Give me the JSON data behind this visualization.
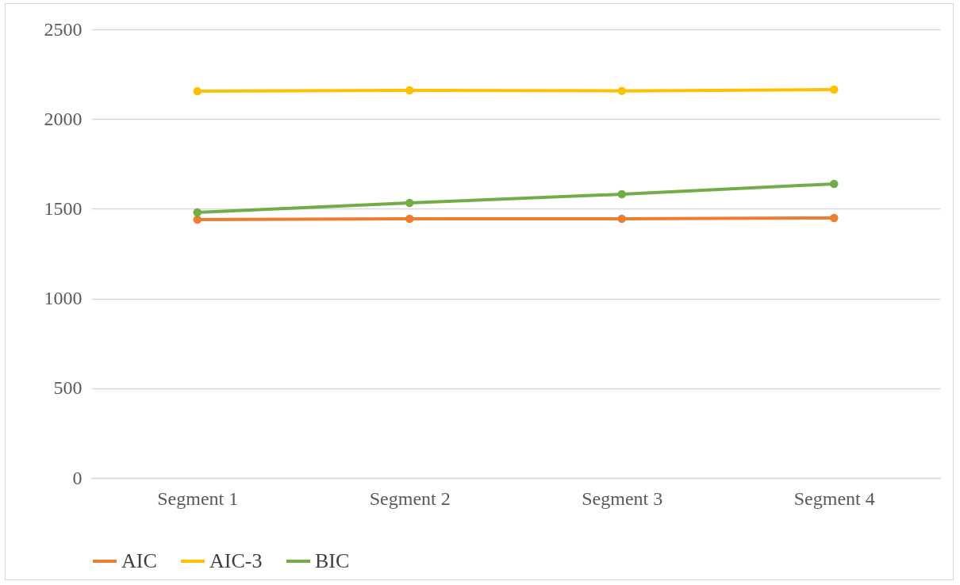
{
  "chart_data": {
    "type": "line",
    "categories": [
      "Segment 1",
      "Segment 2",
      "Segment 3",
      "Segment 4"
    ],
    "series": [
      {
        "name": "AIC",
        "color": "#ed7d31",
        "values": [
          1440,
          1444,
          1444,
          1449
        ]
      },
      {
        "name": "AIC-3",
        "color": "#ffc000",
        "values": [
          2155,
          2160,
          2157,
          2164
        ]
      },
      {
        "name": "BIC",
        "color": "#70ad47",
        "values": [
          1480,
          1533,
          1581,
          1639
        ]
      }
    ],
    "ylim": [
      0,
      2500
    ],
    "yticks": [
      0,
      500,
      1000,
      1500,
      2000,
      2500
    ],
    "grid": "y",
    "legend": "bottom",
    "marker": "circle",
    "line_style": "solid"
  }
}
